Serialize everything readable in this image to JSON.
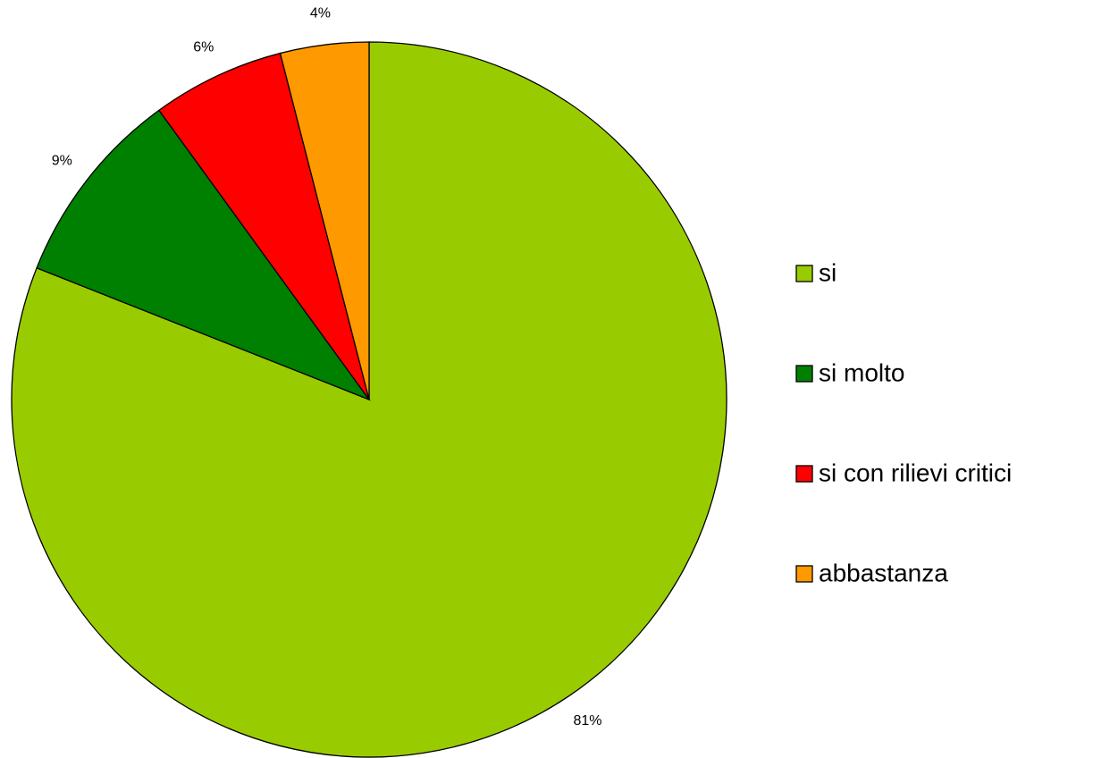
{
  "chart_data": {
    "type": "pie",
    "categories": [
      "si",
      "si molto",
      "si con rilievi critici",
      "abbastanza"
    ],
    "values": [
      81,
      9,
      6,
      4
    ],
    "value_labels": [
      "81%",
      "9%",
      "6%",
      "4%"
    ],
    "colors": [
      "#99cc00",
      "#008000",
      "#ff0000",
      "#ff9900"
    ],
    "legend": "right"
  }
}
